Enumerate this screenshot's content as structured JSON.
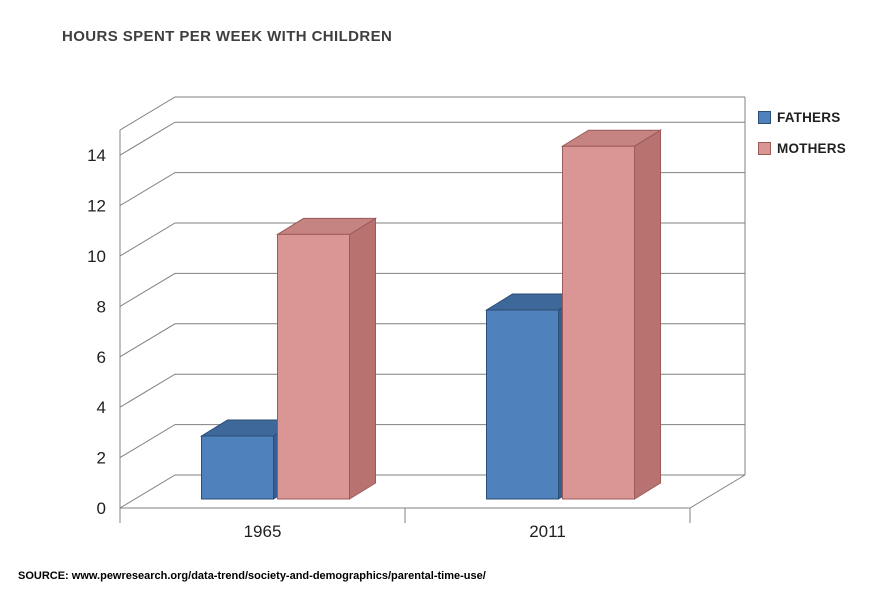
{
  "title": "HOURS SPENT PER WEEK WITH CHILDREN",
  "source": "SOURCE: www.pewresearch.org/data-trend/society-and-demographics/parental-time-use/",
  "chart_data": {
    "type": "bar",
    "subtype": "3d-clustered-column",
    "title": "HOURS SPENT PER WEEK WITH CHILDREN",
    "categories": [
      "1965",
      "2011"
    ],
    "series": [
      {
        "name": "FATHERS",
        "values": [
          2.5,
          7.5
        ],
        "color": "#4f81bd",
        "color_top": "#3d6899",
        "color_side": "#365f91",
        "edge": "#2c4d74"
      },
      {
        "name": "MOTHERS",
        "values": [
          10.5,
          14
        ],
        "color": "#d99694",
        "color_top": "#c58482",
        "color_side": "#b87270",
        "edge": "#9c5b59"
      }
    ],
    "xlabel": "",
    "ylabel": "",
    "y_ticks": [
      0,
      2,
      4,
      6,
      8,
      10,
      12,
      14
    ],
    "ylim": [
      0,
      14
    ],
    "grid": true,
    "legend_position": "top-right",
    "axis_color": "#808080",
    "tick_label_color": "#1f1f1f"
  }
}
